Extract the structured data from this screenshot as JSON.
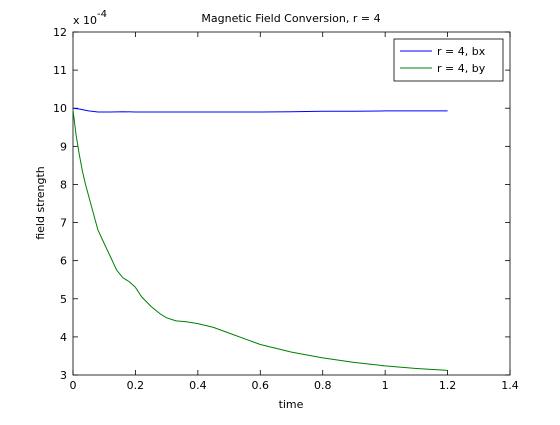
{
  "chart_data": {
    "type": "line",
    "title": "Magnetic Field Conversion, r = 4",
    "xlabel": "time",
    "ylabel": "field strength",
    "y_scale_label": "x 10",
    "y_scale_exponent": "-4",
    "xlim": [
      0,
      1.4
    ],
    "ylim": [
      3,
      12
    ],
    "xticks": [
      0,
      0.2,
      0.4,
      0.6,
      0.8,
      1,
      1.2,
      1.4
    ],
    "xtick_labels": [
      "0",
      "0.2",
      "0.4",
      "0.6",
      "0.8",
      "1",
      "1.2",
      "1.4"
    ],
    "yticks": [
      3,
      4,
      5,
      6,
      7,
      8,
      9,
      10,
      11,
      12
    ],
    "ytick_labels": [
      "3",
      "4",
      "5",
      "6",
      "7",
      "8",
      "9",
      "10",
      "11",
      "12"
    ],
    "grid": false,
    "legend_position": "top-right",
    "series": [
      {
        "name": "r = 4, bx",
        "color": "#0000ff",
        "x": [
          0,
          0.02,
          0.05,
          0.08,
          0.12,
          0.16,
          0.2,
          0.3,
          0.4,
          0.5,
          0.6,
          0.7,
          0.8,
          0.9,
          1.0,
          1.1,
          1.2
        ],
        "y": [
          10.0,
          9.98,
          9.93,
          9.9,
          9.9,
          9.91,
          9.9,
          9.9,
          9.9,
          9.9,
          9.9,
          9.91,
          9.92,
          9.92,
          9.93,
          9.93,
          9.93
        ]
      },
      {
        "name": "r = 4, by",
        "color": "#008000",
        "x": [
          0,
          0.01,
          0.02,
          0.03,
          0.04,
          0.06,
          0.08,
          0.1,
          0.12,
          0.14,
          0.16,
          0.18,
          0.2,
          0.22,
          0.25,
          0.28,
          0.3,
          0.33,
          0.36,
          0.4,
          0.45,
          0.5,
          0.55,
          0.6,
          0.7,
          0.8,
          0.9,
          1.0,
          1.1,
          1.2
        ],
        "y": [
          9.95,
          9.3,
          8.8,
          8.35,
          8.0,
          7.4,
          6.8,
          6.45,
          6.1,
          5.75,
          5.55,
          5.45,
          5.3,
          5.05,
          4.8,
          4.6,
          4.5,
          4.42,
          4.4,
          4.35,
          4.25,
          4.1,
          3.95,
          3.8,
          3.6,
          3.45,
          3.33,
          3.24,
          3.17,
          3.12
        ]
      }
    ]
  }
}
